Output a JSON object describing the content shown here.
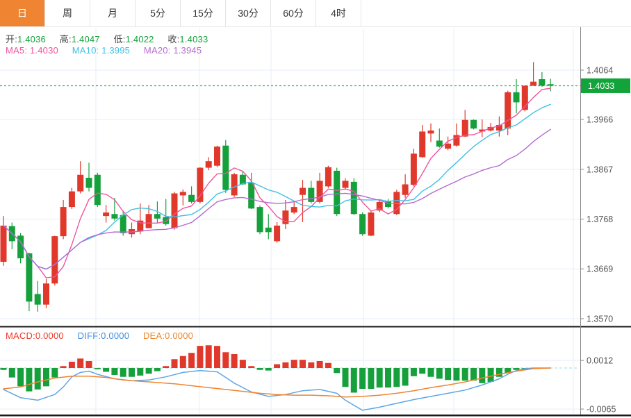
{
  "toolbar": {
    "tabs": [
      {
        "label": "日",
        "active": true
      },
      {
        "label": "周",
        "active": false
      },
      {
        "label": "月",
        "active": false
      },
      {
        "label": "5分",
        "active": false
      },
      {
        "label": "15分",
        "active": false
      },
      {
        "label": "30分",
        "active": false
      },
      {
        "label": "60分",
        "active": false
      },
      {
        "label": "4时",
        "active": false
      }
    ]
  },
  "legend": {
    "ohlc": [
      {
        "label": "开:",
        "value": "1.4036"
      },
      {
        "label": "高:",
        "value": "1.4047"
      },
      {
        "label": "低:",
        "value": "1.4022"
      },
      {
        "label": "收:",
        "value": "1.4033"
      }
    ],
    "ma": [
      {
        "label": "MA5:",
        "value": "1.4030",
        "color": "#ee559c"
      },
      {
        "label": "MA10:",
        "value": "1.3995",
        "color": "#3fc0e4"
      },
      {
        "label": "MA20:",
        "value": "1.3945",
        "color": "#b46ad0"
      }
    ]
  },
  "macd_legend": [
    {
      "label": "MACD:",
      "value": "0.0000",
      "color": "#ed3b2b"
    },
    {
      "label": "DIFF:",
      "value": "0.0000",
      "color": "#3e8ee4"
    },
    {
      "label": "DEA:",
      "value": "0.0000",
      "color": "#f0862b"
    }
  ],
  "price_badge": {
    "value": "1.4033",
    "color": "#12a43a"
  },
  "colors": {
    "up_candle": "#e0392b",
    "down_candle": "#16a03c",
    "grid": "#e7eef6",
    "axis_line": "#555555",
    "axis_text": "#555555",
    "dotted_price_line": "#2fb34f",
    "macd_zero_line": "#9fd8ea",
    "macd_diff_line": "#5ca6e8",
    "macd_dea_line": "#ef8430",
    "macd_up_bar": "#e0392b",
    "macd_down_bar": "#16a03c",
    "tab_active_bg": "#ef8532",
    "separator": "#1a1a1a"
  },
  "chart_data": {
    "type": "candlestick",
    "title": "",
    "convention": "up candles red, down candles green",
    "price_axis": {
      "ticks": [
        "1.4064",
        "1.3966",
        "1.3867",
        "1.3768",
        "1.3669",
        "1.3570"
      ],
      "tick_values": [
        1.4064,
        1.3966,
        1.3867,
        1.3768,
        1.3669,
        1.357
      ],
      "last_price": 1.4033,
      "ymin": 1.3551,
      "ymax": 1.4147
    },
    "ma_periods": [
      5,
      10,
      20
    ],
    "candles": [
      [
        1.3683,
        1.3774,
        1.3675,
        1.3755
      ],
      [
        1.3754,
        1.3761,
        1.3708,
        1.3724
      ],
      [
        1.3735,
        1.374,
        1.368,
        1.369
      ],
      [
        1.37,
        1.3701,
        1.3585,
        1.3604
      ],
      [
        1.3619,
        1.3645,
        1.3584,
        1.3598
      ],
      [
        1.3598,
        1.3649,
        1.3591,
        1.364
      ],
      [
        1.364,
        1.3735,
        1.3636,
        1.3734
      ],
      [
        1.3734,
        1.3806,
        1.3728,
        1.3792
      ],
      [
        1.3792,
        1.383,
        1.3788,
        1.3823
      ],
      [
        1.3823,
        1.3883,
        1.3819,
        1.3856
      ],
      [
        1.385,
        1.388,
        1.3823,
        1.383
      ],
      [
        1.3856,
        1.386,
        1.3792,
        1.3796
      ],
      [
        1.3774,
        1.3796,
        1.3761,
        1.3781
      ],
      [
        1.3778,
        1.381,
        1.3765,
        1.3769
      ],
      [
        1.3776,
        1.3785,
        1.3735,
        1.374
      ],
      [
        1.3738,
        1.3761,
        1.3731,
        1.3748
      ],
      [
        1.3744,
        1.3799,
        1.3738,
        1.3765
      ],
      [
        1.375,
        1.3796,
        1.375,
        1.3778
      ],
      [
        1.3778,
        1.3803,
        1.3761,
        1.3769
      ],
      [
        1.3772,
        1.3808,
        1.3755,
        1.3758
      ],
      [
        1.375,
        1.3822,
        1.3747,
        1.3819
      ],
      [
        1.3815,
        1.3827,
        1.3795,
        1.3822
      ],
      [
        1.3816,
        1.3833,
        1.3799,
        1.3802
      ],
      [
        1.3802,
        1.3871,
        1.3799,
        1.387
      ],
      [
        1.387,
        1.3891,
        1.3865,
        1.3883
      ],
      [
        1.3874,
        1.3914,
        1.3871,
        1.3912
      ],
      [
        1.3914,
        1.3925,
        1.382,
        1.3826
      ],
      [
        1.3815,
        1.386,
        1.3812,
        1.3857
      ],
      [
        1.3856,
        1.3864,
        1.3836,
        1.3837
      ],
      [
        1.384,
        1.386,
        1.3788,
        1.3789
      ],
      [
        1.3792,
        1.3795,
        1.3738,
        1.3742
      ],
      [
        1.3751,
        1.3778,
        1.3728,
        1.3742
      ],
      [
        1.3724,
        1.3762,
        1.3721,
        1.3755
      ],
      [
        1.3758,
        1.3806,
        1.3748,
        1.3785
      ],
      [
        1.3781,
        1.3803,
        1.3778,
        1.3792
      ],
      [
        1.3816,
        1.3846,
        1.3762,
        1.383
      ],
      [
        1.383,
        1.3844,
        1.3799,
        1.3802
      ],
      [
        1.3802,
        1.386,
        1.3799,
        1.3844
      ],
      [
        1.3833,
        1.3874,
        1.383,
        1.3871
      ],
      [
        1.3864,
        1.387,
        1.3774,
        1.3778
      ],
      [
        1.383,
        1.3849,
        1.3826,
        1.3844
      ],
      [
        1.3842,
        1.3849,
        1.3776,
        1.3778
      ],
      [
        1.3778,
        1.3781,
        1.3735,
        1.3738
      ],
      [
        1.3735,
        1.3785,
        1.3734,
        1.3781
      ],
      [
        1.3785,
        1.3808,
        1.3782,
        1.3802
      ],
      [
        1.3803,
        1.3808,
        1.3789,
        1.3792
      ],
      [
        1.3778,
        1.3826,
        1.3776,
        1.3822
      ],
      [
        1.3816,
        1.3857,
        1.381,
        1.3837
      ],
      [
        1.3836,
        1.3908,
        1.3833,
        1.3898
      ],
      [
        1.3891,
        1.3955,
        1.389,
        1.3942
      ],
      [
        1.3938,
        1.3958,
        1.3921,
        1.3944
      ],
      [
        1.3924,
        1.3948,
        1.391,
        1.3912
      ],
      [
        1.3908,
        1.3932,
        1.3905,
        1.3918
      ],
      [
        1.3914,
        1.3958,
        1.3912,
        1.3935
      ],
      [
        1.3932,
        1.3985,
        1.3931,
        1.3965
      ],
      [
        1.3965,
        1.3966,
        1.3946,
        1.3948
      ],
      [
        1.3942,
        1.3966,
        1.3931,
        1.3946
      ],
      [
        1.3944,
        1.3959,
        1.3942,
        1.3951
      ],
      [
        1.3944,
        1.3972,
        1.3932,
        1.3955
      ],
      [
        1.3948,
        1.4023,
        1.3935,
        1.402
      ],
      [
        1.402,
        1.4046,
        1.3978,
        1.4
      ],
      [
        1.3985,
        1.4034,
        1.3982,
        1.4033
      ],
      [
        1.4033,
        1.408,
        1.4033,
        1.4041
      ],
      [
        1.4046,
        1.406,
        1.4031,
        1.4033
      ],
      [
        1.4036,
        1.4047,
        1.4022,
        1.4033
      ]
    ],
    "macd": {
      "axis_ticks": [
        "0.0012",
        "-0.0065"
      ],
      "axis_tick_values": [
        0.0012,
        -0.0065
      ],
      "ymin": -0.0075,
      "ymax": 0.0056,
      "hist": [
        -0.0003,
        -0.0015,
        -0.0029,
        -0.0037,
        -0.0034,
        -0.0029,
        -0.0015,
        0.0003,
        0.001,
        0.0015,
        0.0011,
        -0.0002,
        -0.0006,
        -0.0011,
        -0.0014,
        -0.0014,
        -0.0012,
        -0.0009,
        -0.0005,
        0.0003,
        0.0014,
        0.0019,
        0.0024,
        0.0035,
        0.0036,
        0.0035,
        0.0025,
        0.0022,
        0.0013,
        0.0003,
        -0.0003,
        -0.0004,
        0.0006,
        0.0009,
        0.0013,
        0.0013,
        0.0009,
        0.0011,
        0.0008,
        -0.0008,
        -0.003,
        -0.0039,
        -0.0033,
        -0.0033,
        -0.0031,
        -0.0031,
        -0.003,
        -0.0028,
        -0.0013,
        -0.0009,
        -0.0014,
        -0.0017,
        -0.0019,
        -0.002,
        -0.002,
        -0.002,
        -0.0024,
        -0.0022,
        -0.0014,
        -0.0008,
        -0.0003,
        -0.0003,
        -0.0001,
        0.0,
        0.0
      ],
      "diff": [
        [
          0,
          -0.0034
        ],
        [
          2,
          -0.0047
        ],
        [
          4,
          -0.0051
        ],
        [
          6,
          -0.0042
        ],
        [
          7,
          -0.003
        ],
        [
          8,
          -0.0014
        ],
        [
          9,
          -0.0007
        ],
        [
          10,
          -0.0005
        ],
        [
          11,
          -0.001
        ],
        [
          13,
          -0.0017
        ],
        [
          15,
          -0.002
        ],
        [
          17,
          -0.0019
        ],
        [
          19,
          -0.0014
        ],
        [
          21,
          -0.0007
        ],
        [
          23,
          -0.0004
        ],
        [
          25,
          -0.0006
        ],
        [
          27,
          -0.0024
        ],
        [
          29,
          -0.0038
        ],
        [
          31,
          -0.0045
        ],
        [
          33,
          -0.0042
        ],
        [
          35,
          -0.0036
        ],
        [
          37,
          -0.0034
        ],
        [
          39,
          -0.004
        ],
        [
          40,
          -0.0051
        ],
        [
          42,
          -0.0067
        ],
        [
          44,
          -0.0062
        ],
        [
          46,
          -0.0056
        ],
        [
          48,
          -0.005
        ],
        [
          50,
          -0.0045
        ],
        [
          52,
          -0.004
        ],
        [
          54,
          -0.0035
        ],
        [
          56,
          -0.0027
        ],
        [
          58,
          -0.0017
        ],
        [
          59,
          -0.001
        ],
        [
          60,
          -0.0004
        ],
        [
          61,
          -0.0001
        ],
        [
          62,
          0.0
        ],
        [
          64,
          0.0
        ]
      ],
      "dea": [
        [
          0,
          -0.0033
        ],
        [
          2,
          -0.003
        ],
        [
          4,
          -0.0022
        ],
        [
          6,
          -0.0016
        ],
        [
          8,
          -0.0013
        ],
        [
          10,
          -0.0013
        ],
        [
          12,
          -0.0015
        ],
        [
          14,
          -0.0019
        ],
        [
          16,
          -0.0021
        ],
        [
          18,
          -0.0023
        ],
        [
          20,
          -0.0025
        ],
        [
          22,
          -0.0028
        ],
        [
          24,
          -0.0031
        ],
        [
          26,
          -0.0034
        ],
        [
          28,
          -0.0037
        ],
        [
          30,
          -0.004
        ],
        [
          32,
          -0.0042
        ],
        [
          34,
          -0.0043
        ],
        [
          36,
          -0.0043
        ],
        [
          38,
          -0.0044
        ],
        [
          40,
          -0.0046
        ],
        [
          42,
          -0.0045
        ],
        [
          44,
          -0.0043
        ],
        [
          46,
          -0.004
        ],
        [
          48,
          -0.0036
        ],
        [
          50,
          -0.0031
        ],
        [
          52,
          -0.0027
        ],
        [
          54,
          -0.0022
        ],
        [
          56,
          -0.0016
        ],
        [
          58,
          -0.001
        ],
        [
          60,
          -0.0005
        ],
        [
          62,
          -0.0001
        ],
        [
          64,
          0.0
        ]
      ]
    }
  }
}
